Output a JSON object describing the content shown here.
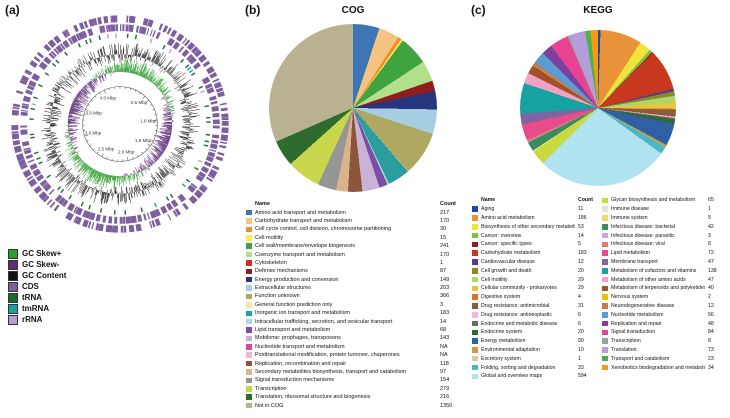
{
  "panels": {
    "a": {
      "label": "(a)"
    },
    "b": {
      "label": "(b)"
    },
    "c": {
      "label": "(c)"
    }
  },
  "genome_map": {
    "genome_size_mbp": 4.3,
    "scale_labels": [
      "0.5 Mbp",
      "1.0 Mbp",
      "1.5 Mbp",
      "2.0 Mbp",
      "2.5 Mbp",
      "3.0 Mbp",
      "3.5 Mbp",
      "4.0 Mbp"
    ],
    "legend": [
      {
        "label": "GC Skew+",
        "color": "#2e9b2e"
      },
      {
        "label": "GC Skew-",
        "color": "#5e2d79"
      },
      {
        "label": "GC Content",
        "color": "#111111"
      },
      {
        "label": "CDS",
        "color": "#7d5fa0"
      },
      {
        "label": "tRNA",
        "color": "#1b6b2a"
      },
      {
        "label": "tmRNA",
        "color": "#17a2a2"
      },
      {
        "label": "rRNA",
        "color": "#b39ddb"
      }
    ]
  },
  "chart_data": [
    {
      "type": "pie",
      "title": "COG",
      "legend_position": "bottom",
      "legend_headers": [
        "Name",
        "Count"
      ],
      "categories": [
        "Amino acid transport and metabolism",
        "Carbohydrate transport and metabolism",
        "Cell cycle control, cell division, chromosome partitioning",
        "Cell motility",
        "Cell wall/membrane/envelope biogenesis",
        "Coenzyme transport and metabolism",
        "Cytoskeleton",
        "Defense mechanisms",
        "Energy production and conversion",
        "Extracellular structures",
        "Function unknown",
        "General function prediction only",
        "Inorganic ion transport and metabolism",
        "Intracellular trafficking, secretion, and vesicular transport",
        "Lipid transport and metabolism",
        "Mobilome: prophages, transposons",
        "Nucleotide transport and metabolism",
        "Posttranslational modification, protein turnover, chaperones",
        "Replication, recombination and repair",
        "Secondary metabolites biosynthesis, transport and catabolism",
        "Signal transduction mechanisms",
        "Transcription",
        "Translation, ribosomal structure and biogenesis",
        "Not in COG"
      ],
      "values": [
        217,
        170,
        30,
        15,
        241,
        170,
        1,
        87,
        149,
        203,
        366,
        3,
        183,
        14,
        68,
        143,
        "NA",
        "NA",
        118,
        97,
        154,
        279,
        216,
        1350
      ],
      "colors": [
        "#3d76b4",
        "#f5c480",
        "#f08c2e",
        "#f7ef4a",
        "#3fa33f",
        "#b2df8a",
        "#d62828",
        "#8f1d1d",
        "#27357e",
        "#a6cee3",
        "#b0a860",
        "#efe9b0",
        "#2a9d9f",
        "#a8dadc",
        "#7b4fa6",
        "#cab2d6",
        "#d6499c",
        "#f4b6d2",
        "#8c563b",
        "#d9b38c",
        "#969696",
        "#c7d64a",
        "#2e6b2e",
        "#b8b290"
      ]
    },
    {
      "type": "pie",
      "title": "KEGG",
      "legend_position": "bottom",
      "legend_headers": [
        "Name",
        "Count"
      ],
      "categories": [
        "Aging",
        "Amino acid metabolism",
        "Biosynthesis of other secondary metabolites",
        "Cancer: overview",
        "Cancer: specific types",
        "Carbohydrate metabolism",
        "Cardiovascular disease",
        "Cell growth and death",
        "Cell motility",
        "Cellular community - prokaryotes",
        "Digestive system",
        "Drug resistance: antimicrobial",
        "Drug resistance: antineoplastic",
        "Endocrine and metabolic disease",
        "Endocrine system",
        "Energy metabolism",
        "Environmental adaptation",
        "Excretory system",
        "Folding, sorting and degradation",
        "Global and overview maps",
        "Glycan biosynthesis and metabolism",
        "Immune disease",
        "Immune system",
        "Infectious disease: bacterial",
        "Infectious disease: parasitic",
        "Infectious disease: viral",
        "Lipid metabolism",
        "Membrane transport",
        "Metabolism of cofactors and vitamins",
        "Metabolism of other amino acids",
        "Metabolism of terpenoids and polyketides",
        "Nervous system",
        "Neurodegenerative disease",
        "Nucleotide metabolism",
        "Replication and repair",
        "Signal transduction",
        "Transcription",
        "Translation",
        "Transport and catabolism",
        "Xenobiotics biodegradation and metabolism"
      ],
      "values": [
        11,
        186,
        53,
        14,
        5,
        183,
        12,
        20,
        29,
        29,
        4,
        31,
        6,
        6,
        20,
        99,
        10,
        1,
        33,
        594,
        65,
        1,
        5,
        42,
        3,
        8,
        72,
        47,
        138,
        47,
        40,
        2,
        12,
        56,
        48,
        84,
        8,
        73,
        23,
        34
      ],
      "colors": [
        "#26479e",
        "#e8923a",
        "#f2e33c",
        "#7bc143",
        "#94201c",
        "#c7381f",
        "#5b3a8c",
        "#8a8a23",
        "#b0d46e",
        "#e3c73c",
        "#d9742c",
        "#8c5a3c",
        "#f0b8d9",
        "#6b6b6b",
        "#2e6b2e",
        "#2f5fa5",
        "#cc9a3f",
        "#d1cfa3",
        "#49b8c4",
        "#aee3ef",
        "#c8d93f",
        "#e0e0e0",
        "#f5d76e",
        "#3a8c5c",
        "#caa6dd",
        "#e57373",
        "#e84c8b",
        "#8064a2",
        "#17a2a2",
        "#f2a1c2",
        "#a0522d",
        "#e6c200",
        "#c97b4a",
        "#5a9bd4",
        "#7d3fa0",
        "#e84393",
        "#95a5a6",
        "#b39ddb",
        "#4caf50",
        "#f39c12"
      ]
    }
  ]
}
